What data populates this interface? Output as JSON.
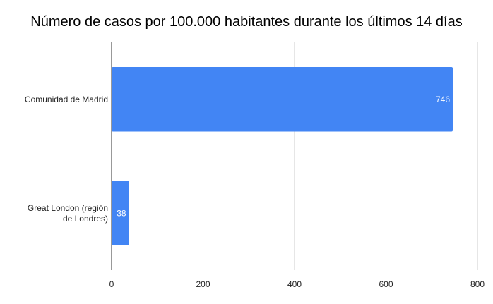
{
  "chart_data": {
    "type": "bar",
    "orientation": "horizontal",
    "title": "Número de casos por 100.000 habitantes durante los últimos 14 días",
    "categories": [
      [
        "Comunidad de Madrid"
      ],
      [
        "Great London (región",
        "de Londres)"
      ]
    ],
    "values": [
      746,
      38
    ],
    "data_labels": [
      "746",
      "38"
    ],
    "xlim": [
      0,
      800
    ],
    "xticks": [
      0,
      200,
      400,
      600,
      800
    ],
    "xtick_labels": [
      "0",
      "200",
      "400",
      "600",
      "800"
    ],
    "bar_color": "#4285f4",
    "grid": "vertical",
    "legend": "none"
  }
}
